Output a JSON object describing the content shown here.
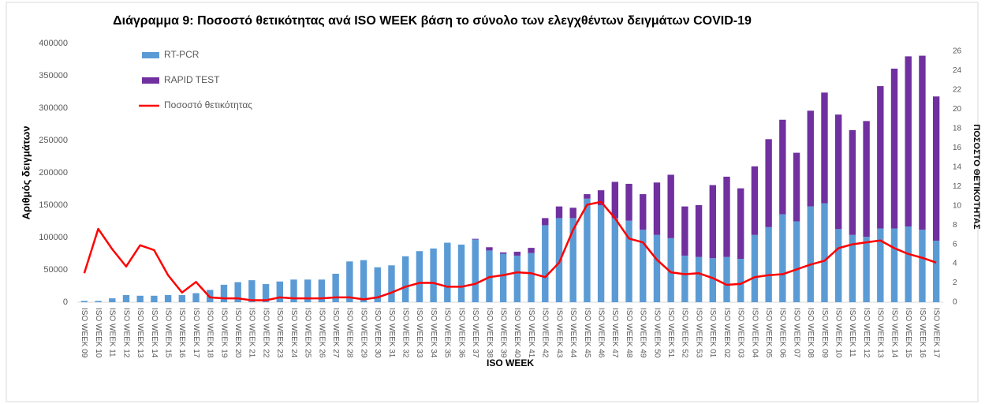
{
  "chart_data": {
    "type": "bar",
    "stacked": true,
    "title": "Διάγραμμα 9: Ποσοστό  θετικότητας ανά ISO WEEK βάση το σύνολο των ελεγχθέντων δειγμάτων COVID-19",
    "x_label": "ISO WEEK",
    "y_label": "Αριθμός δειγμάτων",
    "y2_label": "ΠΟΣΟΣΤΟ ΘΕΤΙΚΟΤΗΤΑΣ",
    "categories": [
      "ISO WEEK 09",
      "ISO WEEK 10",
      "ISO WEEK 11",
      "ISO WEEK 12",
      "ISO WEEK 13",
      "ISO WEEK 14",
      "ISO WEEK 15",
      "ISO WEEK 16",
      "ISO WEEK 17",
      "ISO WEEK 18",
      "ISO WEEK 19",
      "ISO WEEK 20",
      "ISO WEEK 21",
      "ISO WEEK 22",
      "ISO WEEK 23",
      "ISO WEEK 24",
      "ISO WEEK 25",
      "ISO WEEK 26",
      "ISO WEEK 27",
      "ISO WEEK 28",
      "ISO WEEK 29",
      "ISO WEEK 30",
      "ISO WEEK 31",
      "ISO WEEK 32",
      "ISO WEEK 33",
      "ISO WEEK 34",
      "ISO WEEK 35",
      "ISO WEEK 36",
      "ISO WEEK 37",
      "ISO WEEK 38",
      "ISO WEEK 39",
      "ISO WEEK 40",
      "ISO WEEK 41",
      "ISO WEEK 42",
      "ISO WEEK 43",
      "ISO WEEK 44",
      "ISO WEEK 45",
      "ISO WEEK 46",
      "ISO WEEK 47",
      "ISO WEEK 48",
      "ISO WEEK 49",
      "ISO WEEK 50",
      "ISO WEEK 51",
      "ISO WEEK 52",
      "ISO WEEK 53",
      "ISO WEEK 01",
      "ISO WEEK 02",
      "ISO WEEK 03",
      "ISO WEEK 04",
      "ISO WEEK 05",
      "ISO WEEK 06",
      "ISO WEEK 07",
      "ISO WEEK 08",
      "ISO WEEK 09",
      "ISO WEEK 10",
      "ISO WEEK 11",
      "ISO WEEK 12",
      "ISO WEEK 13",
      "ISO WEEK 14",
      "ISO WEEK 15",
      "ISO WEEK 16",
      "ISO WEEK 17"
    ],
    "series": [
      {
        "name": "RT-PCR",
        "color": "#5b9bd5",
        "type": "bar",
        "values": [
          2000,
          2000,
          6000,
          11000,
          10000,
          10000,
          11000,
          11000,
          14000,
          19000,
          27000,
          31000,
          34000,
          28000,
          32000,
          35000,
          35000,
          35000,
          44000,
          63000,
          65000,
          54000,
          57000,
          71000,
          79000,
          83000,
          92000,
          89000,
          97000,
          80000,
          75000,
          72000,
          76000,
          119000,
          130000,
          130000,
          160000,
          150000,
          130000,
          126000,
          112000,
          104000,
          99000,
          72000,
          70000,
          68000,
          70000,
          67000,
          104000,
          116000,
          136000,
          125000,
          148000,
          153000,
          113000,
          104000,
          101000,
          114000,
          114000,
          117000,
          112000,
          95000
        ]
      },
      {
        "name": "RAPID TEST",
        "color": "#7030a0",
        "type": "bar",
        "values": [
          0,
          0,
          0,
          0,
          0,
          0,
          0,
          0,
          0,
          0,
          0,
          0,
          0,
          0,
          0,
          0,
          0,
          0,
          0,
          0,
          0,
          0,
          0,
          0,
          0,
          0,
          0,
          0,
          1000,
          5000,
          2000,
          6000,
          8000,
          11000,
          18000,
          16000,
          7000,
          23000,
          56000,
          57000,
          55000,
          81000,
          98000,
          76000,
          80000,
          113000,
          124000,
          109000,
          106000,
          136000,
          146000,
          106000,
          148000,
          171000,
          177000,
          162000,
          179000,
          220000,
          247000,
          263000,
          269000,
          223000
        ]
      },
      {
        "name": "Ποσοστό θετικότητας",
        "color": "#ff0000",
        "type": "line",
        "axis": "y2",
        "values": [
          3.0,
          7.6,
          5.5,
          3.7,
          5.9,
          5.4,
          2.8,
          1.0,
          2.1,
          0.5,
          0.4,
          0.4,
          0.2,
          0.2,
          0.5,
          0.4,
          0.4,
          0.4,
          0.5,
          0.5,
          0.3,
          0.5,
          1.0,
          1.6,
          2.0,
          2.0,
          1.6,
          1.6,
          1.9,
          2.6,
          2.8,
          3.1,
          3.0,
          2.6,
          4.1,
          7.5,
          10.1,
          10.4,
          8.7,
          6.6,
          6.2,
          4.4,
          3.1,
          2.9,
          3.0,
          2.5,
          1.8,
          1.9,
          2.6,
          2.8,
          2.9,
          3.4,
          3.9,
          4.3,
          5.6,
          6.0,
          6.2,
          6.4,
          5.6,
          5.0,
          4.6,
          4.1
        ]
      }
    ],
    "ylim": [
      0,
      400000
    ],
    "yticks": [
      0,
      50000,
      100000,
      150000,
      200000,
      250000,
      300000,
      350000,
      400000
    ],
    "y2lim": [
      0,
      26
    ],
    "y2ticks": [
      0,
      2,
      4,
      6,
      8,
      10,
      12,
      14,
      16,
      18,
      20,
      22,
      24,
      26
    ],
    "legend": "top-left",
    "grid": false
  }
}
